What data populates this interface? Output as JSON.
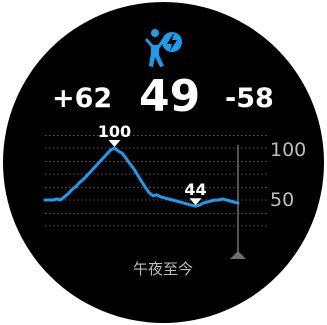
{
  "stress": {
    "current": "49",
    "change_left": "+62",
    "change_right": "-58"
  },
  "icon": {
    "name": "stress-runner-icon",
    "color": "#1e9be9"
  },
  "chart": {
    "period_label": "午夜至今",
    "axis_labels": [
      "100",
      "50"
    ],
    "peak_label": "100",
    "low_label": "44",
    "line_color": "#1e9be9"
  },
  "chart_data": {
    "type": "line",
    "title": "",
    "xlabel": "",
    "ylabel": "",
    "ylim": [
      25,
      112
    ],
    "y_ticks": [
      100,
      50
    ],
    "grid": true,
    "annotations": [
      {
        "label": "100",
        "value": 100,
        "kind": "max"
      },
      {
        "label": "44",
        "value": 44,
        "kind": "min"
      }
    ],
    "series": [
      {
        "values": [
          50,
          50,
          50,
          51,
          50,
          53,
          56,
          60,
          63,
          67,
          70,
          74,
          78,
          82,
          86,
          90,
          94,
          98,
          100,
          97,
          95,
          90,
          85,
          80,
          74,
          68,
          62,
          57,
          54,
          55,
          53,
          52,
          51,
          50,
          49,
          48,
          47,
          46,
          45,
          44,
          45,
          47,
          48,
          49,
          50,
          50,
          51,
          50,
          49,
          48,
          47
        ]
      }
    ]
  }
}
